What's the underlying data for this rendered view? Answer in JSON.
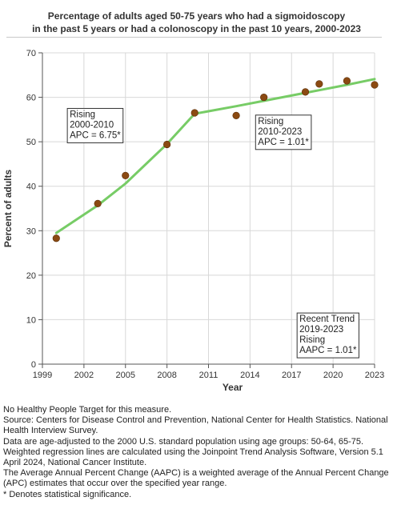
{
  "chart_data": {
    "type": "line",
    "title_lines": [
      "Percentage of adults aged 50-75 years who had a sigmoidoscopy",
      "in the past 5 years or had a colonoscopy in the past 10 years, 2000-2023"
    ],
    "xlabel": "Year",
    "ylabel": "Percent of adults",
    "xlim": [
      1999,
      2023
    ],
    "ylim": [
      0,
      70
    ],
    "x_ticks": [
      1999,
      2002,
      2005,
      2008,
      2011,
      2014,
      2017,
      2020,
      2023
    ],
    "y_ticks": [
      0,
      10,
      20,
      30,
      40,
      50,
      60,
      70
    ],
    "grid": true,
    "observed": {
      "x": [
        2000,
        2003,
        2005,
        2008,
        2010,
        2013,
        2015,
        2018,
        2019,
        2021,
        2023
      ],
      "y": [
        28.3,
        36.1,
        42.4,
        49.4,
        56.5,
        55.9,
        60.0,
        61.2,
        63.0,
        63.7,
        62.8
      ]
    },
    "trend_segments": [
      {
        "x": [
          2000,
          2003,
          2005,
          2008,
          2010
        ],
        "y": [
          29.5,
          35.7,
          40.6,
          49.5,
          56.3
        ]
      },
      {
        "x": [
          2010,
          2013,
          2015,
          2018,
          2019,
          2021,
          2023
        ],
        "y": [
          56.3,
          58.0,
          59.2,
          61.0,
          61.6,
          62.8,
          64.1
        ]
      }
    ],
    "colors": {
      "line": "#77cc66",
      "marker": "#8b4a12",
      "grid": "#d8d8d8",
      "axis": "#555555"
    },
    "annotations": [
      {
        "lines": [
          "Rising",
          "2000-2010",
          "APC =  6.75*"
        ],
        "anchor_x": 2000.8,
        "anchor_y": 57.5
      },
      {
        "lines": [
          "Rising",
          "2010-2023",
          "APC =  1.01*"
        ],
        "anchor_x": 2014.4,
        "anchor_y": 56.0
      },
      {
        "lines": [
          "Recent Trend",
          "2019-2023",
          "Rising",
          "AAPC =  1.01*"
        ],
        "anchor_x": 2017.4,
        "anchor_y": 11.5
      }
    ]
  },
  "notes": [
    "No Healthy People Target for this measure.",
    "Source: Centers for Disease Control and Prevention, National Center for Health Statistics. National Health Interview Survey.",
    "Data are age-adjusted to the 2000 U.S. standard population using age groups: 50-64, 65-75.",
    "Weighted regression lines are calculated using the Joinpoint Trend Analysis Software, Version 5.1 April 2024, National Cancer Institute.",
    "The Average Annual Percent Change (AAPC) is a weighted average of the Annual Percent Change (APC) estimates that occur over the specified year range.",
    "* Denotes statistical significance."
  ]
}
